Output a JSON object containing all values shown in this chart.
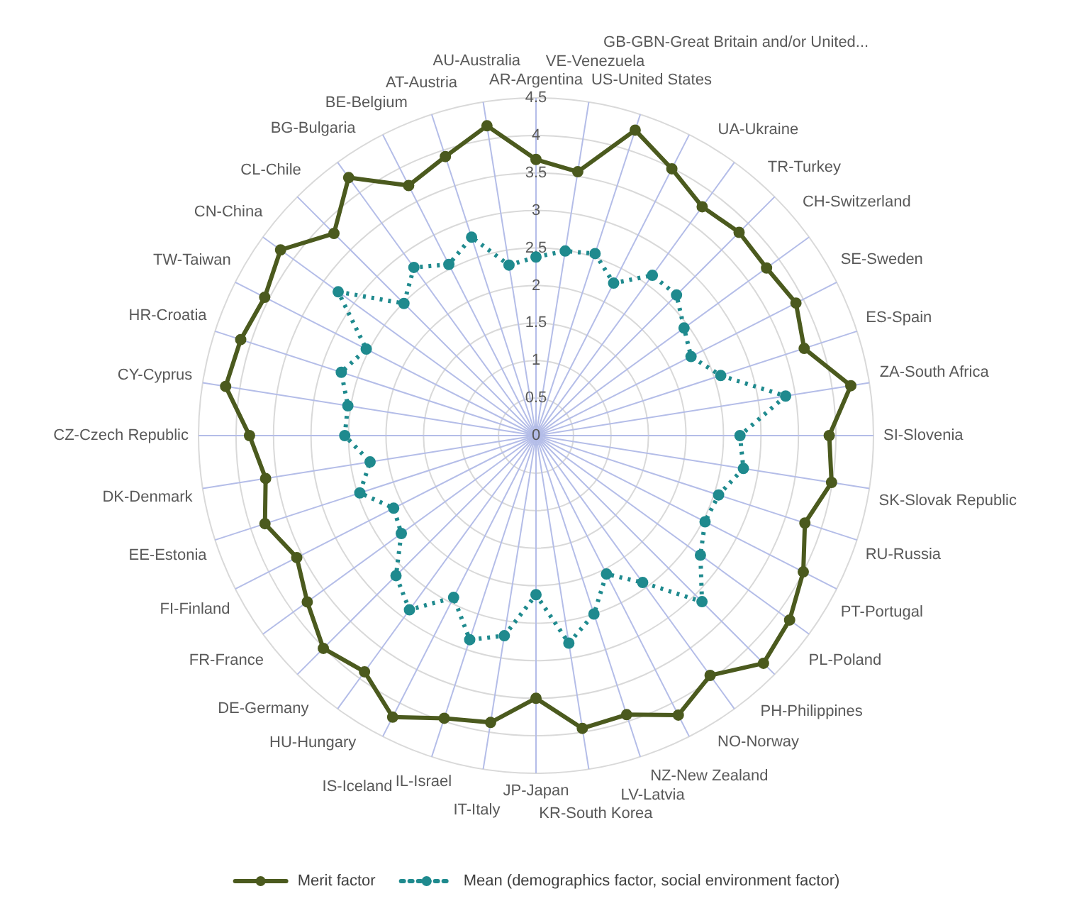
{
  "chart_data": {
    "type": "radar",
    "categories": [
      "AR-Argentina",
      "VE-Venezuela",
      "US-United States",
      "GB-GBN-Great Britain and/or United...",
      "UA-Ukraine",
      "TR-Turkey",
      "CH-Switzerland",
      "SE-Sweden",
      "ES-Spain",
      "ZA-South Africa",
      "SI-Slovenia",
      "SK-Slovak Republic",
      "RU-Russia",
      "PT-Portugal",
      "PL-Poland",
      "PH-Philippines",
      "NO-Norway",
      "NZ-New Zealand",
      "LV-Latvia",
      "KR-South Korea",
      "JP-Japan",
      "IT-Italy",
      "IL-Israel",
      "IS-Iceland",
      "HU-Hungary",
      "DE-Germany",
      "FR-France",
      "FI-Finland",
      "EE-Estonia",
      "DK-Denmark",
      "CZ-Czech Republic",
      "CY-Cyprus",
      "HR-Croatia",
      "TW-Taiwan",
      "CN-China",
      "CL-Chile",
      "BG-Bulgaria",
      "BE-Belgium",
      "AT-Austria",
      "AU-Australia"
    ],
    "series": [
      {
        "name": "Merit factor",
        "color": "#4b5a1e",
        "line_style": "solid",
        "values": [
          3.68,
          3.56,
          4.28,
          3.99,
          3.77,
          3.83,
          3.8,
          3.89,
          3.76,
          4.25,
          3.91,
          3.99,
          3.77,
          4.0,
          4.18,
          4.29,
          3.95,
          4.18,
          3.91,
          3.95,
          3.5,
          3.87,
          3.96,
          4.21,
          3.89,
          4.01,
          3.77,
          3.58,
          3.8,
          3.65,
          3.82,
          4.19,
          4.14,
          4.06,
          4.21,
          3.81,
          4.25,
          3.74,
          3.91,
          4.18
        ]
      },
      {
        "name": "Mean (demographics factor, social environment factor)",
        "color": "#1f8a8e",
        "line_style": "dotted",
        "values": [
          2.38,
          2.49,
          2.55,
          2.28,
          2.64,
          2.65,
          2.44,
          2.32,
          2.59,
          3.37,
          2.72,
          2.8,
          2.56,
          2.53,
          2.71,
          3.13,
          2.42,
          2.07,
          2.5,
          2.8,
          2.12,
          2.7,
          2.86,
          2.42,
          2.87,
          2.64,
          2.22,
          2.13,
          2.47,
          2.24,
          2.55,
          2.54,
          2.73,
          2.54,
          3.26,
          2.49,
          2.77,
          2.56,
          2.78,
          2.3
        ]
      }
    ],
    "ylim": [
      0,
      4.5
    ],
    "yticks": [
      0,
      0.5,
      1,
      1.5,
      2,
      2.5,
      3,
      3.5,
      4,
      4.5
    ],
    "grid": true,
    "legend": "bottom",
    "marker": "circle"
  }
}
